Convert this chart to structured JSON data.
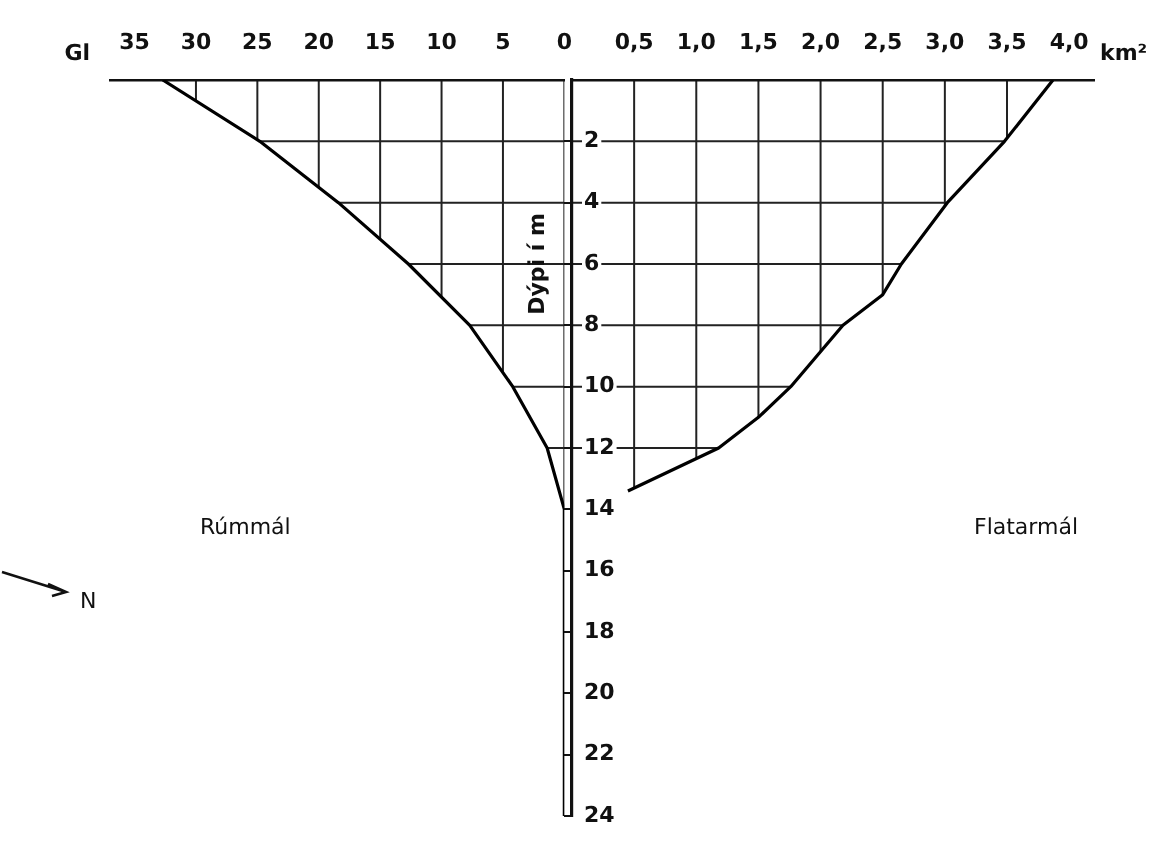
{
  "chart_data": [
    {
      "type": "line",
      "xlabel": "Gl",
      "ylabel": "Dýpi í m",
      "annotations": [
        "Rúmmál",
        "N"
      ],
      "xlim": [
        37,
        0
      ],
      "xticks": [
        35,
        30,
        25,
        20,
        15,
        10,
        5,
        0
      ],
      "ylim": [
        24,
        0
      ],
      "yticks": [
        2,
        4,
        6,
        8,
        10,
        12,
        14,
        16,
        18,
        20,
        22,
        24
      ],
      "tick_labels": "x",
      "grid": true,
      "series": [
        {
          "color": "#000000",
          "x": [
            32.7,
            24.8,
            18.4,
            12.7,
            7.7,
            4.2,
            1.4,
            0,
            0
          ],
          "values": [
            0,
            2,
            4,
            6,
            8,
            10,
            12,
            14,
            24
          ]
        }
      ]
    },
    {
      "type": "line",
      "xlabel": "km²",
      "annotations": [
        "Flatarmál"
      ],
      "xlim": [
        0,
        4.2
      ],
      "xticks": [
        {
          "value": 0.5,
          "label": "0,5"
        },
        {
          "value": 1,
          "label": "1,0"
        },
        {
          "value": 1.5,
          "label": "1,5"
        },
        {
          "value": 2,
          "label": "2,0"
        },
        {
          "value": 2.5,
          "label": "2,5"
        },
        {
          "value": 3,
          "label": "3,0"
        },
        {
          "value": 3.5,
          "label": "3,5"
        },
        {
          "value": 4,
          "label": "4,0"
        }
      ],
      "ylim": [
        24,
        0
      ],
      "yticks": [
        2,
        4,
        6,
        8,
        10,
        12,
        14,
        16,
        18,
        20,
        22,
        24
      ],
      "grid": true,
      "series": [
        {
          "color": "#000000",
          "x": [
            3.87,
            3.48,
            3.02,
            2.65,
            2.5,
            2.18,
            1.97,
            1.76,
            1.5,
            1.18,
            0.45
          ],
          "values": [
            0,
            2,
            4,
            6,
            7,
            8,
            9,
            10,
            11,
            12,
            13.4
          ]
        }
      ]
    }
  ]
}
